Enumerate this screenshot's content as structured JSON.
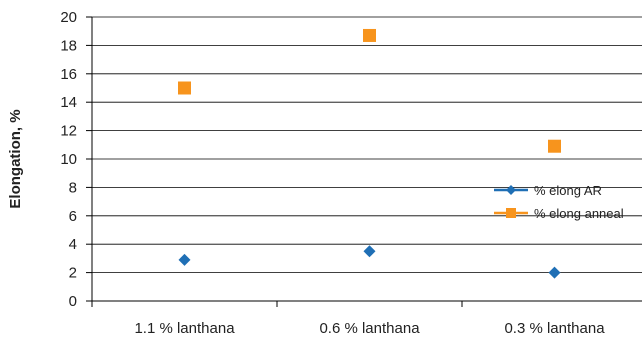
{
  "chart_data": {
    "type": "scatter",
    "categories": [
      "1.1 % lanthana",
      "0.6 % lanthana",
      "0.3 % lanthana"
    ],
    "series": [
      {
        "name": "% elong AR",
        "values": [
          2.9,
          3.5,
          2.0
        ],
        "color": "#1f6fb5",
        "marker": "diamond"
      },
      {
        "name": "% elong anneal",
        "values": [
          15.0,
          18.7,
          10.9
        ],
        "color": "#f7941d",
        "marker": "square"
      }
    ],
    "title": "",
    "xlabel": "",
    "ylabel": "Elongation, %",
    "ylim": [
      0,
      20
    ],
    "yticks": [
      0,
      2,
      4,
      6,
      8,
      10,
      12,
      14,
      16,
      18,
      20
    ],
    "grid": true,
    "legend": "right"
  }
}
